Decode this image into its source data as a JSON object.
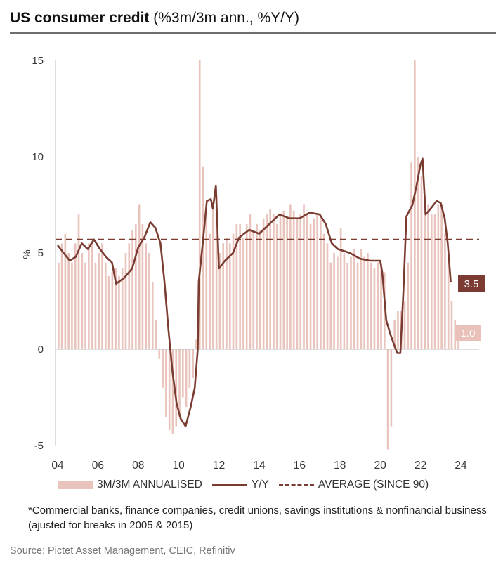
{
  "title": {
    "main": "US consumer credit",
    "sub": "(%3m/3m ann., %Y/Y)"
  },
  "chart_data": {
    "type": "bar+line",
    "title": "US consumer credit (%3m/3m ann., %Y/Y)",
    "ylabel": "%",
    "ylim": [
      -5,
      15
    ],
    "yticks": [
      "15",
      "10",
      "5",
      "0",
      "-5"
    ],
    "ytick_values": [
      15,
      10,
      5,
      0,
      -5
    ],
    "xlim": [
      2004,
      2025
    ],
    "xticks": [
      "04",
      "06",
      "08",
      "10",
      "12",
      "14",
      "16",
      "18",
      "20",
      "22",
      "24"
    ],
    "xtick_values": [
      2004,
      2006,
      2008,
      2010,
      2012,
      2014,
      2016,
      2018,
      2020,
      2022,
      2024
    ],
    "bars": {
      "name": "3M/3M ANNUALISED",
      "start": 2004.0,
      "step": 0.16667,
      "values": [
        4.5,
        5.5,
        6,
        5,
        4.5,
        5.5,
        7,
        5,
        4.5,
        5.5,
        5.5,
        4.5,
        5,
        5.5,
        4.5,
        3.8,
        4,
        4.2,
        3.8,
        4.2,
        5,
        5.5,
        6.2,
        6.5,
        7.5,
        6.5,
        5.5,
        5,
        3.5,
        1.5,
        -0.5,
        -2,
        -3.5,
        -4.2,
        -4.4,
        -4,
        -3.5,
        -2.5,
        -3,
        -2,
        -1.5,
        0.5,
        15,
        9.5,
        7,
        6,
        7.5,
        8,
        5,
        5.5,
        5.8,
        5.5,
        6,
        6.5,
        6.5,
        5.8,
        6.5,
        7,
        6.2,
        6.5,
        6.2,
        6.8,
        7,
        7.3,
        7,
        6.5,
        7,
        7.2,
        6.8,
        7.5,
        7.2,
        6.8,
        7,
        7.5,
        7,
        6.5,
        6.8,
        7,
        6.8,
        6,
        5.5,
        4.5,
        5,
        4.8,
        6.3,
        5,
        4.5,
        4.8,
        5.2,
        4.5,
        5.2,
        4.8,
        5,
        4.5,
        4.2,
        4.5,
        4.5,
        4,
        -5.2,
        -4,
        1.5,
        2,
        2,
        2.5,
        4.5,
        9.7,
        15,
        10,
        9,
        8,
        7.5,
        7,
        7,
        7.5,
        7.5,
        6,
        4.5,
        2.5,
        1.5,
        1.0
      ]
    },
    "line": {
      "name": "Y/Y",
      "points": [
        [
          2004.0,
          5.4
        ],
        [
          2004.3,
          5.0
        ],
        [
          2004.6,
          4.6
        ],
        [
          2004.9,
          4.8
        ],
        [
          2005.2,
          5.5
        ],
        [
          2005.5,
          5.2
        ],
        [
          2005.8,
          5.7
        ],
        [
          2006.1,
          5.2
        ],
        [
          2006.4,
          4.8
        ],
        [
          2006.7,
          4.5
        ],
        [
          2006.9,
          3.4
        ],
        [
          2007.3,
          3.7
        ],
        [
          2007.7,
          4.2
        ],
        [
          2008.0,
          5.3
        ],
        [
          2008.3,
          5.8
        ],
        [
          2008.6,
          6.6
        ],
        [
          2008.85,
          6.3
        ],
        [
          2009.1,
          5.5
        ],
        [
          2009.3,
          3.5
        ],
        [
          2009.5,
          1.0
        ],
        [
          2009.7,
          -1.2
        ],
        [
          2009.9,
          -2.8
        ],
        [
          2010.1,
          -3.6
        ],
        [
          2010.35,
          -4.0
        ],
        [
          2010.6,
          -3.0
        ],
        [
          2010.8,
          -2.0
        ],
        [
          2010.95,
          0.0
        ],
        [
          2011.0,
          3.5
        ],
        [
          2011.2,
          5.5
        ],
        [
          2011.4,
          7.7
        ],
        [
          2011.6,
          7.8
        ],
        [
          2011.7,
          7.3
        ],
        [
          2011.85,
          8.5
        ],
        [
          2012.0,
          4.2
        ],
        [
          2012.3,
          4.6
        ],
        [
          2012.7,
          5.0
        ],
        [
          2013.0,
          5.8
        ],
        [
          2013.5,
          6.2
        ],
        [
          2014.0,
          6.0
        ],
        [
          2014.5,
          6.5
        ],
        [
          2015.0,
          7.0
        ],
        [
          2015.5,
          6.8
        ],
        [
          2016.0,
          6.8
        ],
        [
          2016.5,
          7.1
        ],
        [
          2017.0,
          7.0
        ],
        [
          2017.3,
          6.5
        ],
        [
          2017.6,
          5.5
        ],
        [
          2017.9,
          5.2
        ],
        [
          2018.5,
          5.0
        ],
        [
          2019.0,
          4.7
        ],
        [
          2019.5,
          4.6
        ],
        [
          2020.0,
          4.6
        ],
        [
          2020.1,
          4.0
        ],
        [
          2020.3,
          1.5
        ],
        [
          2020.5,
          0.8
        ],
        [
          2020.7,
          0.2
        ],
        [
          2020.85,
          -0.2
        ],
        [
          2021.0,
          -0.2
        ],
        [
          2021.15,
          3.0
        ],
        [
          2021.3,
          6.9
        ],
        [
          2021.6,
          7.5
        ],
        [
          2021.8,
          8.5
        ],
        [
          2022.0,
          9.6
        ],
        [
          2022.1,
          9.9
        ],
        [
          2022.25,
          7.0
        ],
        [
          2022.5,
          7.3
        ],
        [
          2022.8,
          7.7
        ],
        [
          2023.0,
          7.6
        ],
        [
          2023.2,
          6.8
        ],
        [
          2023.35,
          5.5
        ],
        [
          2023.5,
          3.5
        ]
      ]
    },
    "average": {
      "name": "AVERAGE (SINCE 90)",
      "value": 5.7
    },
    "end_labels": {
      "yy": "3.5",
      "ann": "1.0"
    },
    "colors": {
      "bar": "#e8c4bc",
      "line": "#7a3b31",
      "axis": "#bdbdbd"
    },
    "legend_position": "bottom"
  },
  "legend": {
    "bars": "3M/3M ANNUALISED",
    "line": "Y/Y",
    "average": "AVERAGE  (SINCE 90)"
  },
  "note": "*Commercial banks, finance companies, credit unions, savings institutions & nonfinancial business  (ajusted for breaks in 2005 & 2015)",
  "source": "Source: Pictet Asset Management, CEIC, Refinitiv"
}
